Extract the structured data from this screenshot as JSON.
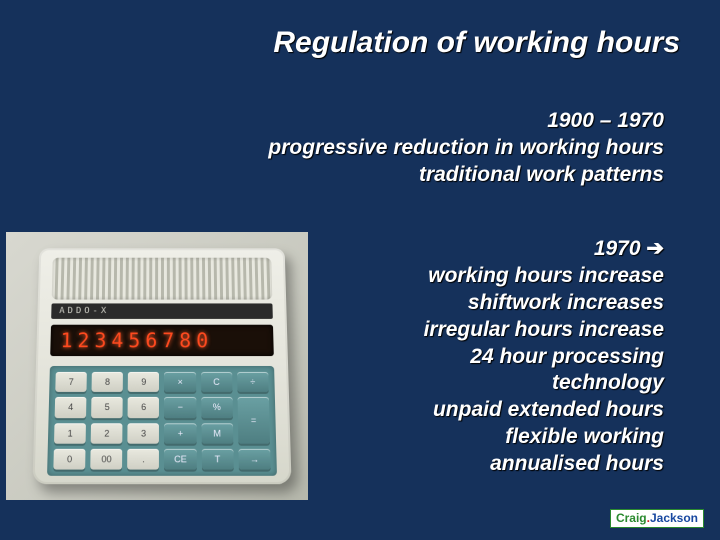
{
  "slide": {
    "background_color": "#15315b",
    "text_color": "#ffffff",
    "font_style": "bold italic",
    "title_fontsize": 30,
    "body_fontsize": 21,
    "title": "Regulation of working hours",
    "block1": {
      "lines": [
        "1900 – 1970",
        "progressive reduction in working hours",
        "traditional work patterns"
      ]
    },
    "block2": {
      "heading": "1970",
      "arrow": "➔",
      "lines": [
        "working hours increase",
        "shiftwork increases",
        "irregular hours increase",
        "24 hour processing",
        "technology",
        "unpaid extended hours",
        "flexible working",
        "annualised hours"
      ]
    }
  },
  "calculator": {
    "brand": "ADDO-X",
    "display": "123456780",
    "body_color": "#e5e5dc",
    "keypad_color": "#5a8f92",
    "digit_color": "#ff4a1f",
    "keys": [
      {
        "label": "7",
        "dark": false
      },
      {
        "label": "8",
        "dark": false
      },
      {
        "label": "9",
        "dark": false
      },
      {
        "label": "×",
        "dark": true
      },
      {
        "label": "C",
        "dark": true
      },
      {
        "label": "÷",
        "dark": true
      },
      {
        "label": "4",
        "dark": false
      },
      {
        "label": "5",
        "dark": false
      },
      {
        "label": "6",
        "dark": false
      },
      {
        "label": "−",
        "dark": true
      },
      {
        "label": "%",
        "dark": true
      },
      {
        "label": "=",
        "dark": true,
        "tall": true
      },
      {
        "label": "1",
        "dark": false
      },
      {
        "label": "2",
        "dark": false
      },
      {
        "label": "3",
        "dark": false
      },
      {
        "label": "+",
        "dark": true
      },
      {
        "label": "M",
        "dark": true
      },
      {
        "label": "0",
        "dark": false
      },
      {
        "label": "00",
        "dark": false
      },
      {
        "label": ".",
        "dark": false
      },
      {
        "label": "CE",
        "dark": true
      },
      {
        "label": "T",
        "dark": true
      },
      {
        "label": "→",
        "dark": true
      }
    ]
  },
  "footer": {
    "part1": "Craig",
    "dot": ".",
    "part2": "Jackson",
    "border_color": "#2a8a2f",
    "color1": "#2a8a2f",
    "color_dot": "#d02020",
    "color2": "#1848a0"
  }
}
